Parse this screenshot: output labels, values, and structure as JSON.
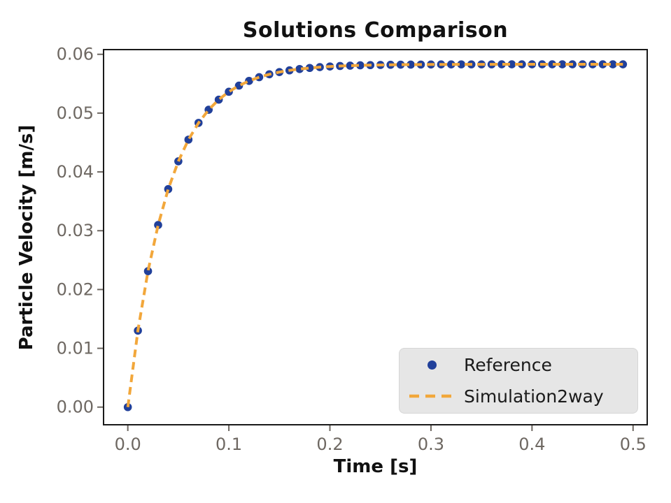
{
  "chart_data": {
    "type": "line",
    "title": "Solutions Comparison",
    "xlabel": "Time [s]",
    "ylabel": "Particle Velocity [m/s]",
    "xlim": [
      -0.024,
      0.514
    ],
    "ylim": [
      -0.003,
      0.0608
    ],
    "grid": false,
    "frame": true,
    "xticks": {
      "values": [
        0.0,
        0.1,
        0.2,
        0.3,
        0.4,
        0.5
      ],
      "labels": [
        "0.0",
        "0.1",
        "0.2",
        "0.3",
        "0.4",
        "0.5"
      ]
    },
    "yticks": {
      "values": [
        0.0,
        0.01,
        0.02,
        0.03,
        0.04,
        0.05,
        0.06
      ],
      "labels": [
        "0.00",
        "0.01",
        "0.02",
        "0.03",
        "0.04",
        "0.05",
        "0.06"
      ]
    },
    "x": [
      0.0,
      0.01,
      0.02,
      0.03,
      0.04,
      0.05,
      0.06,
      0.07,
      0.08,
      0.09,
      0.1,
      0.11,
      0.12,
      0.13,
      0.14,
      0.15,
      0.16,
      0.17,
      0.18,
      0.19,
      0.2,
      0.21,
      0.22,
      0.23,
      0.24,
      0.25,
      0.26,
      0.27,
      0.28,
      0.29,
      0.3,
      0.31,
      0.32,
      0.33,
      0.34,
      0.35,
      0.36,
      0.37,
      0.38,
      0.39,
      0.4,
      0.41,
      0.42,
      0.43,
      0.44,
      0.45,
      0.46,
      0.47,
      0.48,
      0.49
    ],
    "series": [
      {
        "name": "Reference",
        "type": "scatter",
        "marker": "circle",
        "color": "#21409a",
        "values": [
          0.0,
          0.01301,
          0.02312,
          0.03097,
          0.03707,
          0.0418,
          0.04549,
          0.04834,
          0.05057,
          0.05229,
          0.05363,
          0.05467,
          0.05548,
          0.05611,
          0.0566,
          0.05698,
          0.05727,
          0.0575,
          0.05768,
          0.05782,
          0.05793,
          0.05801,
          0.05807,
          0.05813,
          0.05816,
          0.05819,
          0.05822,
          0.05824,
          0.05825,
          0.05826,
          0.05827,
          0.05828,
          0.05828,
          0.05829,
          0.05829,
          0.05829,
          0.05829,
          0.0583,
          0.0583,
          0.0583,
          0.0583,
          0.0583,
          0.0583,
          0.0583,
          0.0583,
          0.0583,
          0.0583,
          0.0583,
          0.0583,
          0.0583
        ]
      },
      {
        "name": "Simulation2way",
        "type": "line",
        "linestyle": "dashed",
        "color": "#f2a73b",
        "values": [
          0.0,
          0.01301,
          0.02312,
          0.03097,
          0.03707,
          0.0418,
          0.04549,
          0.04834,
          0.05057,
          0.05229,
          0.05363,
          0.05467,
          0.05548,
          0.05611,
          0.0566,
          0.05698,
          0.05727,
          0.0575,
          0.05768,
          0.05782,
          0.05793,
          0.05801,
          0.05807,
          0.05813,
          0.05816,
          0.05819,
          0.05822,
          0.05824,
          0.05825,
          0.05826,
          0.05827,
          0.05828,
          0.05828,
          0.05829,
          0.05829,
          0.05829,
          0.05829,
          0.0583,
          0.0583,
          0.0583,
          0.0583,
          0.0583,
          0.0583,
          0.0583,
          0.0583,
          0.0583,
          0.0583,
          0.0583,
          0.0583,
          0.0583
        ]
      }
    ],
    "legend": {
      "position": "lower-right",
      "items": [
        {
          "label": "Reference",
          "marker": "dot",
          "color": "#21409a"
        },
        {
          "label": "Simulation2way",
          "marker": "dashes",
          "color": "#f2a73b"
        }
      ]
    }
  },
  "colors": {
    "background": "#ffffff",
    "axis_frame": "#1a1a1a",
    "tick": "#6e6862",
    "tick_label": "#6e6862",
    "title_text": "#111111",
    "legend_bg": "#e6e6e6",
    "legend_border": "#d6d6d6",
    "legend_text": "#1a1a1a"
  }
}
